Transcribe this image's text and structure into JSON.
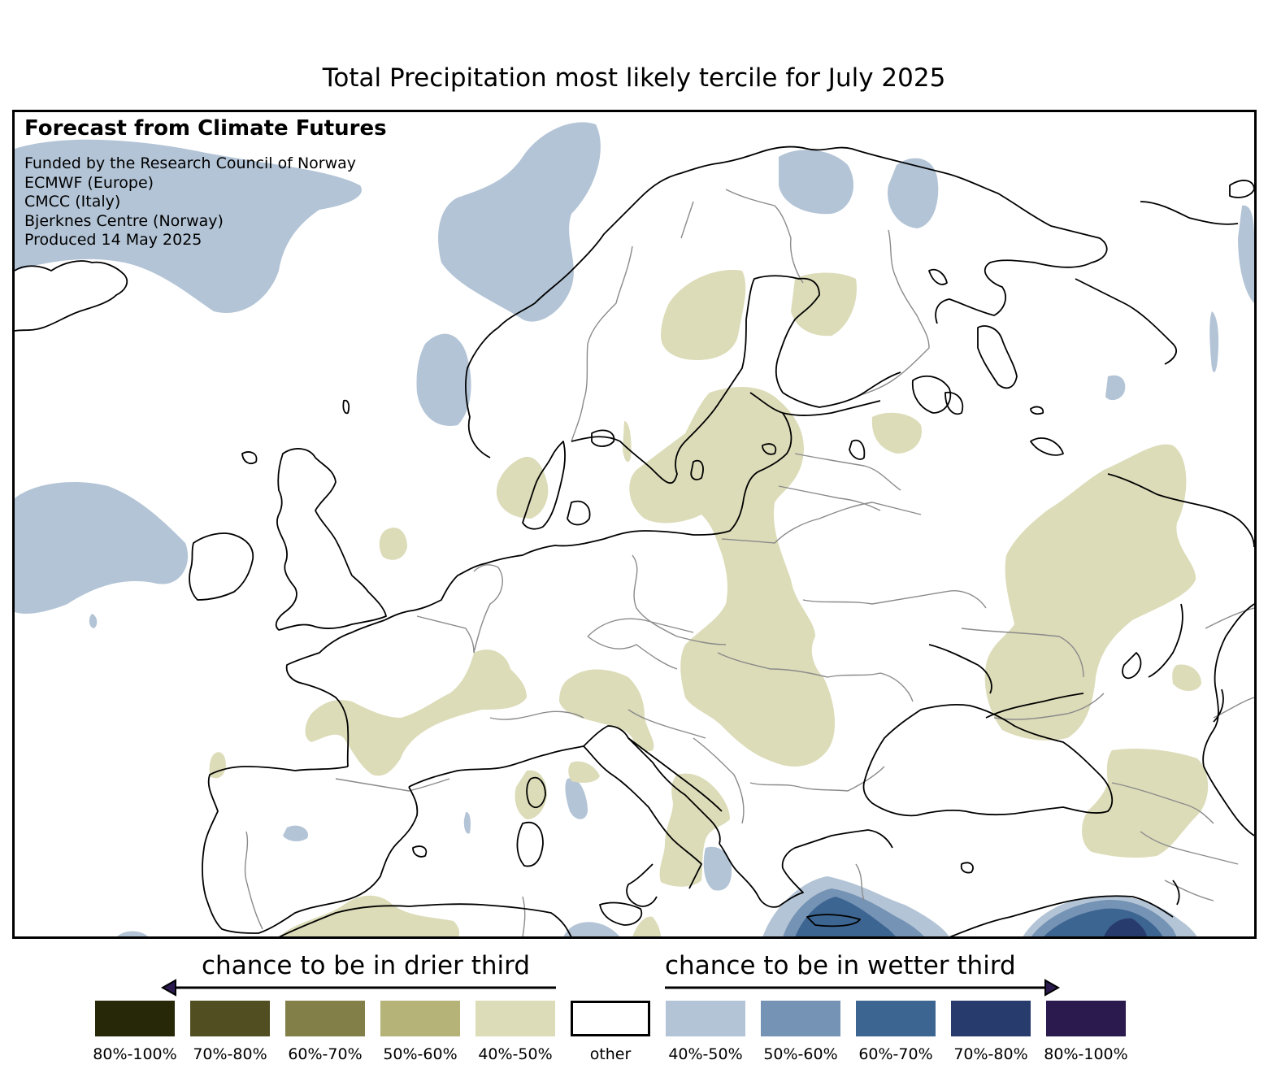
{
  "title": "Total Precipitation most likely tercile for July 2025",
  "info": {
    "heading": "Forecast from Climate Futures",
    "lines": [
      "Funded by the Research Council of Norway",
      "ECMWF (Europe)",
      "CMCC (Italy)",
      "Bjerknes Centre (Norway)",
      "Produced 14 May 2025"
    ]
  },
  "legend": {
    "drier_label": "chance to be in drier third",
    "wetter_label": "chance to be in wetter third",
    "items": [
      {
        "label": "80%-100%",
        "color": "#272808"
      },
      {
        "label": "70%-80%",
        "color": "#514e22"
      },
      {
        "label": "60%-70%",
        "color": "#827f49"
      },
      {
        "label": "50%-60%",
        "color": "#b5b378"
      },
      {
        "label": "40%-50%",
        "color": "#dcdcb9"
      },
      {
        "label": "other",
        "color": "#ffffff"
      },
      {
        "label": "40%-50%",
        "color": "#b3c4d6"
      },
      {
        "label": "50%-60%",
        "color": "#7593b5"
      },
      {
        "label": "60%-70%",
        "color": "#3d6591"
      },
      {
        "label": "70%-80%",
        "color": "#273b6c"
      },
      {
        "label": "80%-100%",
        "color": "#2a1a4e"
      }
    ]
  },
  "colors": {
    "dry_40_50": "#dcdcb9",
    "wet_40_50": "#b3c4d6",
    "wet_50_60": "#7593b5",
    "wet_60_70": "#3d6591",
    "wet_70_80": "#273b6c",
    "coastline": "#000000",
    "borders": "#8a8a8a"
  }
}
